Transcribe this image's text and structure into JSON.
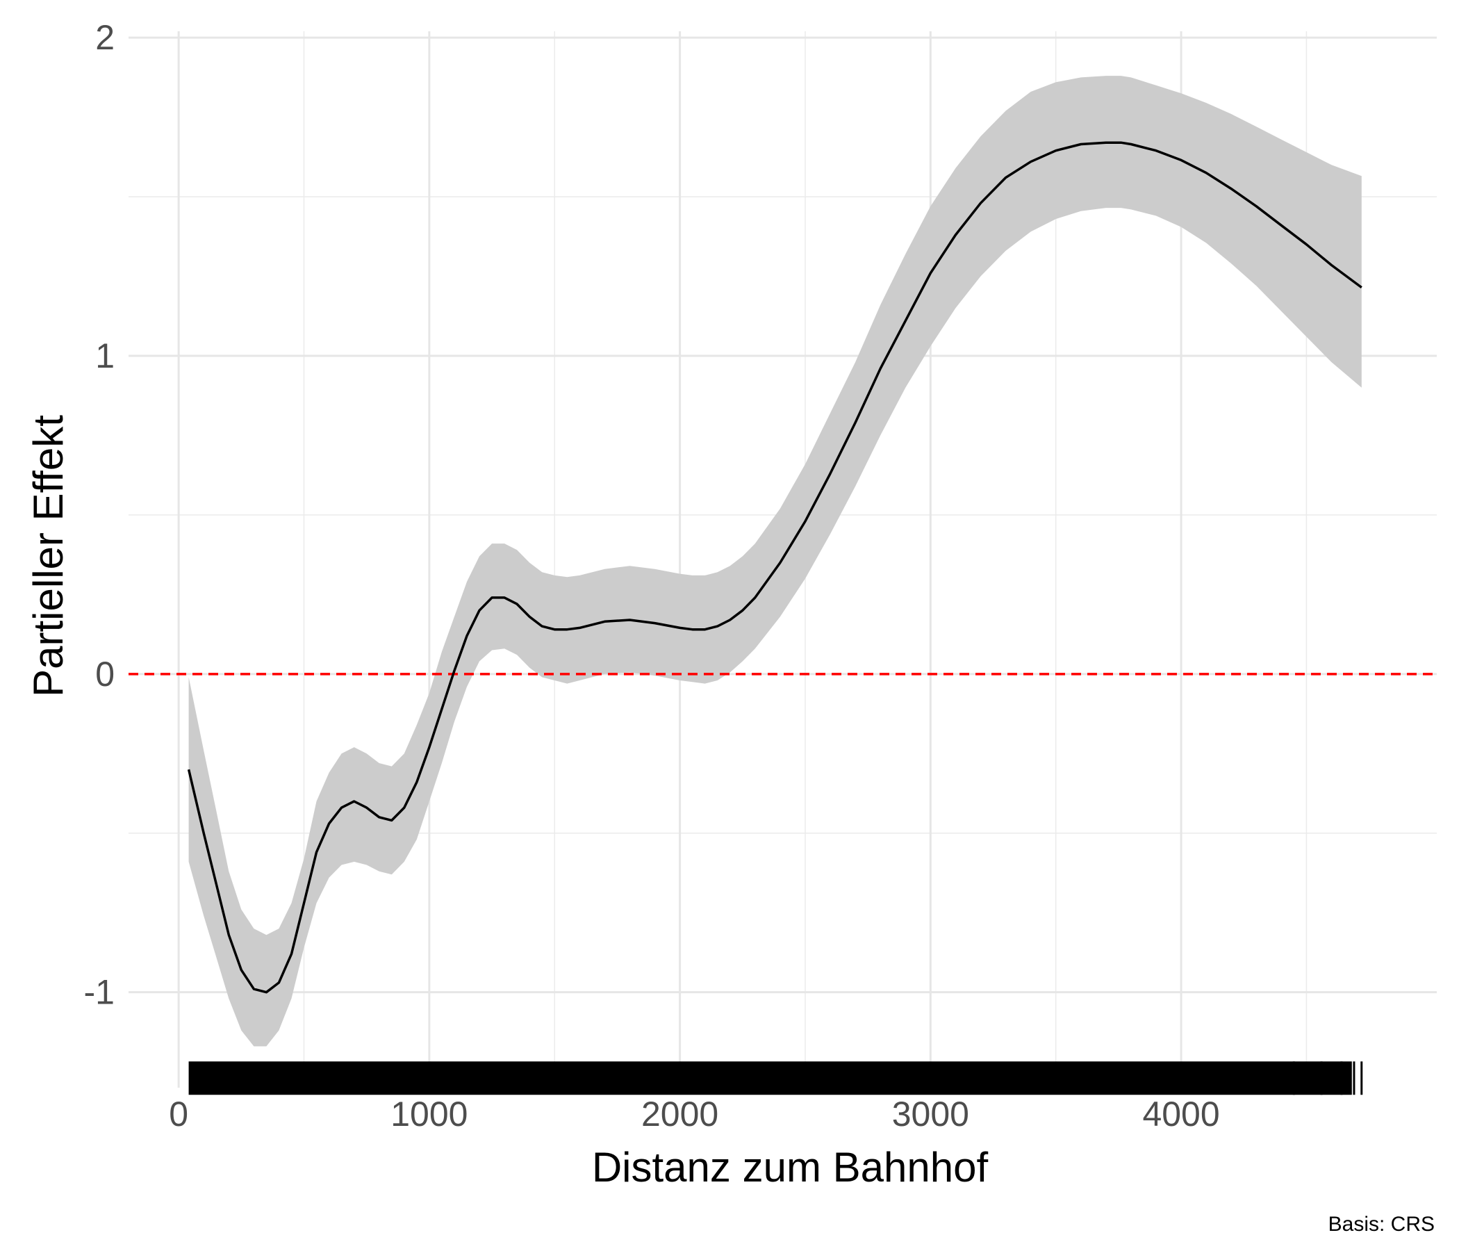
{
  "chart_data": {
    "type": "line",
    "xlabel": "Distanz zum Bahnhof",
    "ylabel": "Partieller Effekt",
    "caption": "Basis: CRS",
    "xlim": [
      -200,
      5020
    ],
    "ylim": [
      -1.3,
      2.02
    ],
    "x_ticks": [
      0,
      1000,
      2000,
      3000,
      4000
    ],
    "x_tick_labels": [
      "0",
      "1000",
      "2000",
      "3000",
      "4000"
    ],
    "y_ticks": [
      -1,
      0,
      1,
      2
    ],
    "y_tick_labels": [
      "-1",
      "0",
      "1",
      "2"
    ],
    "grid": true,
    "reference_line": {
      "y": 0,
      "style": "dashed",
      "color": "#ff0000"
    },
    "band_color": "#cccccc",
    "line_color": "#000000",
    "rug": {
      "x_start": 40,
      "x_end": 4720,
      "y": -1.27,
      "color": "#000000"
    },
    "series": [
      {
        "x": [
          40,
          100,
          150,
          200,
          250,
          300,
          350,
          400,
          450,
          500,
          550,
          600,
          650,
          700,
          750,
          800,
          850,
          900,
          950,
          1000,
          1050,
          1100,
          1150,
          1200,
          1250,
          1300,
          1350,
          1400,
          1450,
          1500,
          1550,
          1600,
          1700,
          1800,
          1900,
          2000,
          2050,
          2100,
          2150,
          2200,
          2250,
          2300,
          2400,
          2500,
          2600,
          2700,
          2800,
          2900,
          3000,
          3100,
          3200,
          3300,
          3400,
          3500,
          3600,
          3700,
          3760,
          3800,
          3900,
          4000,
          4100,
          4200,
          4300,
          4400,
          4500,
          4600,
          4720
        ],
        "y": [
          -0.3,
          -0.5,
          -0.66,
          -0.82,
          -0.93,
          -0.99,
          -1.0,
          -0.97,
          -0.88,
          -0.72,
          -0.56,
          -0.47,
          -0.42,
          -0.4,
          -0.42,
          -0.45,
          -0.46,
          -0.42,
          -0.34,
          -0.23,
          -0.11,
          0.01,
          0.12,
          0.2,
          0.24,
          0.24,
          0.22,
          0.18,
          0.15,
          0.14,
          0.14,
          0.145,
          0.165,
          0.17,
          0.16,
          0.145,
          0.14,
          0.14,
          0.15,
          0.17,
          0.2,
          0.24,
          0.35,
          0.48,
          0.63,
          0.79,
          0.96,
          1.11,
          1.26,
          1.38,
          1.48,
          1.56,
          1.61,
          1.645,
          1.665,
          1.67,
          1.67,
          1.665,
          1.645,
          1.615,
          1.575,
          1.525,
          1.47,
          1.41,
          1.35,
          1.285,
          1.215
        ],
        "lower": [
          -0.59,
          -0.76,
          -0.89,
          -1.02,
          -1.12,
          -1.17,
          -1.17,
          -1.12,
          -1.02,
          -0.86,
          -0.72,
          -0.64,
          -0.6,
          -0.59,
          -0.6,
          -0.62,
          -0.63,
          -0.59,
          -0.52,
          -0.4,
          -0.28,
          -0.15,
          -0.04,
          0.04,
          0.075,
          0.08,
          0.06,
          0.02,
          -0.01,
          -0.02,
          -0.03,
          -0.02,
          0.0,
          0.005,
          -0.005,
          -0.02,
          -0.025,
          -0.03,
          -0.02,
          0.005,
          0.04,
          0.08,
          0.18,
          0.3,
          0.44,
          0.59,
          0.75,
          0.9,
          1.03,
          1.15,
          1.25,
          1.33,
          1.39,
          1.43,
          1.455,
          1.465,
          1.465,
          1.46,
          1.44,
          1.405,
          1.355,
          1.29,
          1.22,
          1.14,
          1.06,
          0.98,
          0.9
        ],
        "upper": [
          -0.01,
          -0.24,
          -0.43,
          -0.62,
          -0.74,
          -0.8,
          -0.82,
          -0.8,
          -0.72,
          -0.58,
          -0.4,
          -0.31,
          -0.25,
          -0.23,
          -0.25,
          -0.28,
          -0.29,
          -0.25,
          -0.16,
          -0.06,
          0.07,
          0.18,
          0.29,
          0.37,
          0.41,
          0.41,
          0.39,
          0.35,
          0.32,
          0.31,
          0.305,
          0.31,
          0.33,
          0.34,
          0.33,
          0.315,
          0.31,
          0.31,
          0.32,
          0.34,
          0.37,
          0.41,
          0.52,
          0.66,
          0.82,
          0.98,
          1.16,
          1.32,
          1.47,
          1.59,
          1.69,
          1.77,
          1.83,
          1.86,
          1.875,
          1.88,
          1.88,
          1.875,
          1.85,
          1.825,
          1.795,
          1.76,
          1.72,
          1.68,
          1.64,
          1.6,
          1.565
        ]
      }
    ]
  }
}
